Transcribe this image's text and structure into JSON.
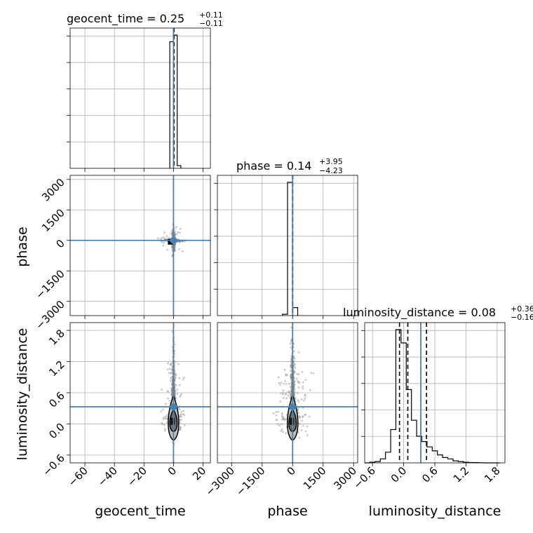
{
  "chart_data": {
    "type": "corner",
    "parameters": [
      "geocent_time",
      "phase",
      "luminosity_distance"
    ],
    "ranges": {
      "geocent_time": [
        -70,
        25
      ],
      "phase": [
        -3700,
        3200
      ],
      "luminosity_distance": [
        -0.75,
        1.95
      ]
    },
    "ticks": {
      "geocent_time": [
        -60,
        -40,
        -20,
        0,
        20
      ],
      "phase": [
        -3000,
        -1500,
        0,
        1500,
        3000
      ],
      "luminosity_distance": [
        -0.6,
        0.0,
        0.6,
        1.2,
        1.8
      ]
    },
    "tick_labels": {
      "geocent_time": [
        "−60",
        "−40",
        "−20",
        "0",
        "20"
      ],
      "phase": [
        "−3000",
        "−1500",
        "0",
        "1500",
        "3000"
      ],
      "luminosity_distance": [
        "−0.6",
        "0.0",
        "0.6",
        "1.2",
        "1.8"
      ]
    },
    "injection": {
      "geocent_time": 0.0,
      "phase": 0.0,
      "luminosity_distance": 0.33
    },
    "quantiles": {
      "geocent_time": [
        0.14,
        0.25,
        0.36
      ],
      "phase": [
        -4.09,
        0.14,
        4.09
      ],
      "luminosity_distance": [
        -0.08,
        0.08,
        0.44
      ]
    },
    "titles": {
      "geocent_time": {
        "main": "geocent_time = 0.25",
        "sup": "+0.11",
        "sub": "−0.11"
      },
      "phase": {
        "main": "phase = 0.14",
        "sup": "+3.95",
        "sub": "−4.23"
      },
      "luminosity_distance": {
        "main": "luminosity_distance = 0.08",
        "sup": "+0.36",
        "sub": "−0.16"
      }
    },
    "hist_geocent_time": {
      "bins": [
        -2.5,
        0,
        2.5,
        5.0
      ],
      "counts": [
        0.95,
        1.0,
        0.02
      ]
    },
    "hist_phase": {
      "bins": [
        -500,
        -250,
        0,
        250
      ],
      "counts": [
        0.01,
        1.0,
        0.06
      ]
    },
    "hist_luminosity_distance": {
      "bins": [
        -0.75,
        -0.65,
        -0.55,
        -0.45,
        -0.35,
        -0.25,
        -0.15,
        -0.05,
        0.05,
        0.15,
        0.25,
        0.35,
        0.45,
        0.55,
        0.65,
        0.75,
        0.85,
        0.95,
        1.05,
        1.15,
        1.25,
        1.35,
        1.45,
        1.55,
        1.65,
        1.75,
        1.85
      ],
      "counts": [
        0,
        0.005,
        0.01,
        0.03,
        0.08,
        0.25,
        1.0,
        0.9,
        0.55,
        0.32,
        0.2,
        0.16,
        0.12,
        0.09,
        0.06,
        0.04,
        0.03,
        0.015,
        0.01,
        0.005,
        0.003,
        0.002,
        0.001,
        0,
        0,
        0
      ]
    },
    "colors": {
      "hist": "#000000",
      "injection": "#4682b4",
      "scatter": "#888888",
      "contour": "#000000"
    },
    "grid": true
  }
}
